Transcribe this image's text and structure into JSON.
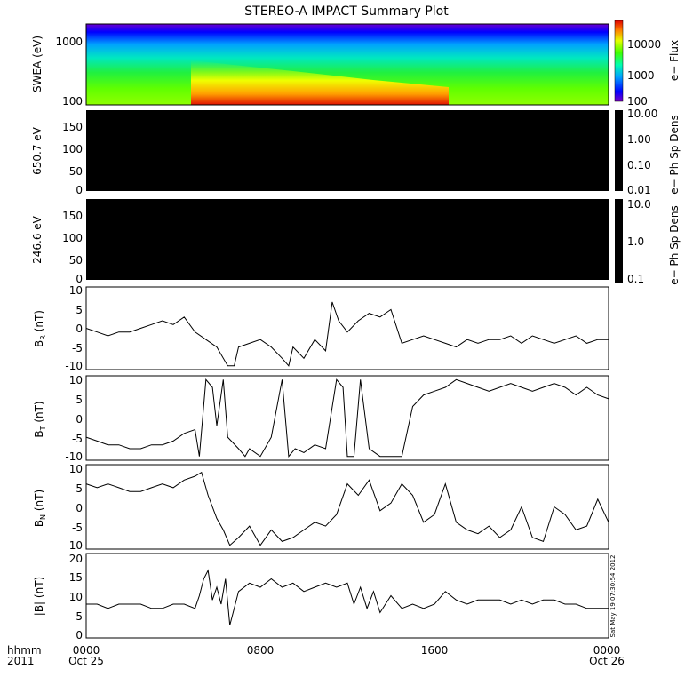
{
  "title": "STEREO-A IMPACT Summary Plot",
  "timestamp_stamp": "Sat May 19 07:30:54 2012",
  "x_axis": {
    "row1_label": "hhmm",
    "row2_label": "2011",
    "ticks": [
      {
        "time": "0000",
        "date": "Oct 25",
        "hour": 0
      },
      {
        "time": "0800",
        "date": "",
        "hour": 8
      },
      {
        "time": "1600",
        "date": "",
        "hour": 16
      },
      {
        "time": "0000",
        "date": "Oct 26",
        "hour": 24
      }
    ],
    "range_hours": [
      0,
      24
    ]
  },
  "panels": {
    "swea": {
      "ylabel": "SWEA (eV)",
      "yticks": [
        "1000",
        "100"
      ],
      "ylim": [
        90,
        2000
      ],
      "colorbar_label": "e− Flux",
      "colorbar_ticks": [
        "10000",
        "1000",
        "100"
      ]
    },
    "pad650": {
      "ylabel": "650.7 eV",
      "yticks": [
        "150",
        "100",
        "50",
        "0"
      ],
      "ylim": [
        0,
        180
      ],
      "colorbar_label": "e− Ph Sp Dens",
      "colorbar_ticks": [
        "10.00",
        "1.00",
        "0.10",
        "0.01"
      ]
    },
    "pad246": {
      "ylabel": "246.6 eV",
      "yticks": [
        "150",
        "100",
        "50",
        "0"
      ],
      "ylim": [
        0,
        180
      ],
      "colorbar_label": "e− Ph Sp Dens",
      "colorbar_ticks": [
        "10.0",
        "1.0",
        "0.1"
      ]
    },
    "br": {
      "ylabel_main": "B",
      "ylabel_sub": "R",
      "ylabel_unit": " (nT)",
      "yticks": [
        "10",
        "5",
        "0",
        "-5",
        "-10"
      ]
    },
    "bt": {
      "ylabel_main": "B",
      "ylabel_sub": "T",
      "ylabel_unit": " (nT)",
      "yticks": [
        "10",
        "5",
        "0",
        "-5",
        "-10"
      ]
    },
    "bn": {
      "ylabel_main": "B",
      "ylabel_sub": "N",
      "ylabel_unit": " (nT)",
      "yticks": [
        "10",
        "5",
        "0",
        "-5",
        "-10"
      ]
    },
    "bmag": {
      "ylabel": "|B| (nT)",
      "yticks": [
        "20",
        "15",
        "10",
        "5",
        "0"
      ]
    }
  },
  "chart_data": [
    {
      "type": "heatmap",
      "title": "STEREO-A IMPACT Summary Plot",
      "ylabel": "SWEA (eV)",
      "colorbar": "e− Flux",
      "note": "electron energy spectrogram; enhanced low-energy flux after ~0500",
      "ylim": [
        90,
        2000
      ]
    },
    {
      "type": "heatmap",
      "ylabel": "650.7 eV",
      "colorbar": "e− Ph Sp Dens",
      "ylim": [
        0,
        180
      ],
      "note": "all black (no data)"
    },
    {
      "type": "heatmap",
      "ylabel": "246.6 eV",
      "colorbar": "e− Ph Sp Dens",
      "ylim": [
        0,
        180
      ],
      "note": "all black (no data)"
    },
    {
      "type": "line",
      "ylabel": "BR (nT)",
      "ylim": [
        -11,
        11
      ],
      "x": [
        0,
        0.5,
        1,
        1.5,
        2,
        2.5,
        3,
        3.5,
        4,
        4.5,
        5,
        5.5,
        6,
        6.5,
        6.8,
        7,
        7.5,
        8,
        8.5,
        9,
        9.3,
        9.5,
        10,
        10.5,
        11,
        11.3,
        11.6,
        12,
        12.5,
        13,
        13.5,
        14,
        14.5,
        15,
        15.5,
        16,
        16.5,
        17,
        17.5,
        18,
        18.5,
        19,
        19.5,
        20,
        20.5,
        21,
        21.5,
        22,
        22.5,
        23,
        23.5,
        24
      ],
      "y": [
        0,
        -1,
        -2,
        -1,
        -1,
        0,
        1,
        2,
        1,
        3,
        -1,
        -3,
        -5,
        -10,
        -10,
        -5,
        -4,
        -3,
        -5,
        -8,
        -10,
        -5,
        -8,
        -3,
        -6,
        7,
        2,
        -1,
        2,
        4,
        3,
        5,
        -4,
        -3,
        -2,
        -3,
        -4,
        -5,
        -3,
        -4,
        -3,
        -3,
        -2,
        -4,
        -2,
        -3,
        -4,
        -3,
        -2,
        -4,
        -3,
        -3
      ]
    },
    {
      "type": "line",
      "ylabel": "BT (nT)",
      "ylim": [
        -11,
        11
      ],
      "x": [
        0,
        0.5,
        1,
        1.5,
        2,
        2.5,
        3,
        3.5,
        4,
        4.5,
        5,
        5.2,
        5.5,
        5.8,
        6,
        6.3,
        6.5,
        7,
        7.3,
        7.5,
        8,
        8.5,
        9,
        9.3,
        9.6,
        10,
        10.5,
        11,
        11.5,
        11.8,
        12,
        12.3,
        12.6,
        13,
        13.5,
        14,
        14.5,
        15,
        15.5,
        16,
        16.5,
        17,
        17.5,
        18,
        18.5,
        19,
        19.5,
        20,
        20.5,
        21,
        21.5,
        22,
        22.5,
        23,
        23.5,
        24
      ],
      "y": [
        -5,
        -6,
        -7,
        -7,
        -8,
        -8,
        -7,
        -7,
        -6,
        -4,
        -3,
        -10,
        10,
        8,
        -2,
        10,
        -5,
        -8,
        -10,
        -8,
        -10,
        -5,
        10,
        -10,
        -8,
        -9,
        -7,
        -8,
        10,
        8,
        -10,
        -10,
        10,
        -8,
        -10,
        -10,
        -10,
        3,
        6,
        7,
        8,
        10,
        9,
        8,
        7,
        8,
        9,
        8,
        7,
        8,
        9,
        8,
        6,
        8,
        6,
        5
      ]
    },
    {
      "type": "line",
      "ylabel": "BN (nT)",
      "ylim": [
        -11,
        11
      ],
      "x": [
        0,
        0.5,
        1,
        1.5,
        2,
        2.5,
        3,
        3.5,
        4,
        4.5,
        5,
        5.3,
        5.6,
        6,
        6.3,
        6.6,
        7,
        7.5,
        8,
        8.5,
        9,
        9.5,
        10,
        10.5,
        11,
        11.5,
        12,
        12.5,
        13,
        13.5,
        14,
        14.5,
        15,
        15.5,
        16,
        16.5,
        17,
        17.5,
        18,
        18.5,
        19,
        19.5,
        20,
        20.5,
        21,
        21.5,
        22,
        22.5,
        23,
        23.5,
        24
      ],
      "y": [
        6,
        5,
        6,
        5,
        4,
        4,
        5,
        6,
        5,
        7,
        8,
        9,
        3,
        -3,
        -6,
        -10,
        -8,
        -5,
        -10,
        -6,
        -9,
        -8,
        -6,
        -4,
        -5,
        -2,
        6,
        3,
        7,
        -1,
        1,
        6,
        3,
        -4,
        -2,
        6,
        -4,
        -6,
        -7,
        -5,
        -8,
        -6,
        0,
        -8,
        -9,
        0,
        -2,
        -6,
        -5,
        2,
        -4
      ]
    },
    {
      "type": "line",
      "ylabel": "|B| (nT)",
      "ylim": [
        0,
        20
      ],
      "x": [
        0,
        0.5,
        1,
        1.5,
        2,
        2.5,
        3,
        3.5,
        4,
        4.5,
        5,
        5.2,
        5.4,
        5.6,
        5.8,
        6,
        6.2,
        6.4,
        6.6,
        7,
        7.5,
        8,
        8.5,
        9,
        9.5,
        10,
        10.5,
        11,
        11.5,
        12,
        12.3,
        12.6,
        12.9,
        13.2,
        13.5,
        14,
        14.5,
        15,
        15.5,
        16,
        16.5,
        17,
        17.5,
        18,
        18.5,
        19,
        19.5,
        20,
        20.5,
        21,
        21.5,
        22,
        22.5,
        23,
        23.5,
        24
      ],
      "y": [
        8,
        8,
        7,
        8,
        8,
        8,
        7,
        7,
        8,
        8,
        7,
        10,
        14,
        16,
        9,
        12,
        8,
        14,
        3,
        11,
        13,
        12,
        14,
        12,
        13,
        11,
        12,
        13,
        12,
        13,
        8,
        12,
        7,
        11,
        6,
        10,
        7,
        8,
        7,
        8,
        11,
        9,
        8,
        9,
        9,
        9,
        8,
        9,
        8,
        9,
        9,
        8,
        8,
        7,
        7,
        7
      ]
    }
  ]
}
